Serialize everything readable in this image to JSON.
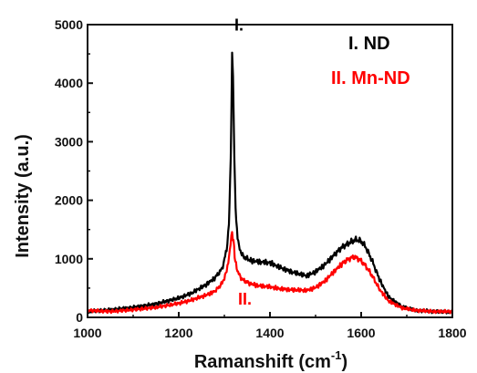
{
  "chart_data": {
    "type": "line",
    "xlabel": "Ramanshift (cm",
    "xlabel_sup": "-1",
    "xlabel_end": ")",
    "ylabel": "Intensity (a.u.)",
    "xlim": [
      1000,
      1800
    ],
    "ylim": [
      0,
      5000
    ],
    "x_ticks": [
      "1000",
      "1200",
      "1400",
      "1600",
      "1800"
    ],
    "y_ticks": [
      "0",
      "1000",
      "2000",
      "3000",
      "4000",
      "5000"
    ],
    "legend_position": "top-right",
    "series": [
      {
        "name": "I. ND",
        "color": "#000000",
        "x": [
          1000,
          1050,
          1100,
          1150,
          1200,
          1230,
          1260,
          1280,
          1295,
          1305,
          1310,
          1314,
          1317,
          1319,
          1322,
          1326,
          1332,
          1340,
          1355,
          1375,
          1400,
          1420,
          1450,
          1480,
          1500,
          1520,
          1540,
          1555,
          1565,
          1580,
          1590,
          1600,
          1610,
          1625,
          1640,
          1660,
          1690,
          1720,
          1760,
          1800
        ],
        "y": [
          100,
          130,
          170,
          230,
          330,
          420,
          560,
          680,
          830,
          1150,
          1600,
          2700,
          4500,
          4200,
          2600,
          1600,
          1200,
          1050,
          980,
          950,
          930,
          860,
          770,
          710,
          780,
          900,
          1060,
          1180,
          1230,
          1300,
          1330,
          1300,
          1200,
          950,
          650,
          350,
          180,
          120,
          100,
          90
        ]
      },
      {
        "name": "II. Mn-ND",
        "color": "#ff0000",
        "x": [
          1000,
          1050,
          1100,
          1150,
          1200,
          1230,
          1260,
          1280,
          1295,
          1305,
          1312,
          1317,
          1320,
          1324,
          1330,
          1340,
          1355,
          1375,
          1400,
          1420,
          1450,
          1480,
          1500,
          1520,
          1540,
          1560,
          1575,
          1585,
          1595,
          1610,
          1625,
          1640,
          1660,
          1690,
          1720,
          1760,
          1800
        ],
        "y": [
          120,
          100,
          130,
          170,
          240,
          300,
          380,
          450,
          580,
          780,
          1150,
          1450,
          1300,
          950,
          760,
          640,
          580,
          540,
          520,
          490,
          470,
          460,
          510,
          620,
          780,
          930,
          1010,
          1030,
          1000,
          880,
          700,
          480,
          280,
          160,
          120,
          100,
          100
        ]
      }
    ],
    "legend": [
      {
        "label": "I. ND",
        "color": "#000000"
      },
      {
        "label": "II. Mn-ND",
        "color": "#ff0000"
      }
    ],
    "annotations": [
      {
        "text": "I.",
        "color": "#000000",
        "x": 1322,
        "y": 4900
      },
      {
        "text": "II.",
        "color": "#ff0000",
        "x": 1330,
        "y": 220
      }
    ]
  }
}
